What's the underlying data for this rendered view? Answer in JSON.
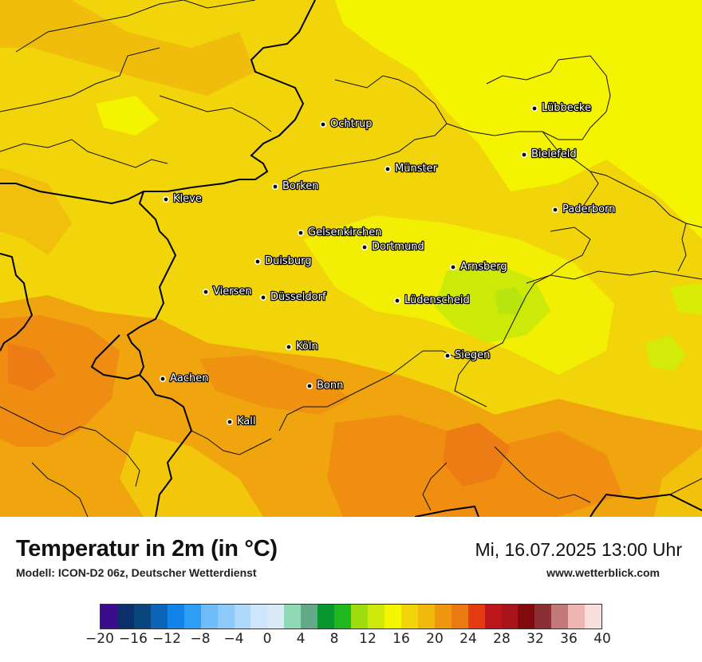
{
  "title": "Temperatur in 2m (in °C)",
  "subtitle": "Modell: ICON-D2 06z, Deutscher Wetterdienst",
  "datetime": "Mi, 16.07.2025 13:00 Uhr",
  "website": "www.wetterblick.com",
  "cities": [
    {
      "name": "Lübbecke"
    },
    {
      "name": "Ochtrup"
    },
    {
      "name": "Bielefeld"
    },
    {
      "name": "Münster"
    },
    {
      "name": "Borken"
    },
    {
      "name": "Kleve"
    },
    {
      "name": "Paderborn"
    },
    {
      "name": "Gelsenkirchen"
    },
    {
      "name": "Dortmund"
    },
    {
      "name": "Duisburg"
    },
    {
      "name": "Arnsberg"
    },
    {
      "name": "Viersen"
    },
    {
      "name": "Düsseldorf"
    },
    {
      "name": "Lüdenscheid"
    },
    {
      "name": "Köln"
    },
    {
      "name": "Siegen"
    },
    {
      "name": "Aachen"
    },
    {
      "name": "Bonn"
    },
    {
      "name": "Kall"
    }
  ],
  "legend": {
    "colors": [
      "#3b0d8c",
      "#0b2f6b",
      "#08467d",
      "#0b64b5",
      "#1283e8",
      "#2d9df5",
      "#6fbcf8",
      "#8ecaf9",
      "#afd9fb",
      "#cde6fb",
      "#d9e9f6",
      "#8fd9b6",
      "#63aa8b",
      "#08962e",
      "#1fb81f",
      "#9edc0f",
      "#cfe809",
      "#f4f700",
      "#f2d40a",
      "#f0b90b",
      "#ef9610",
      "#ec7a13",
      "#e43b13",
      "#bd161a",
      "#a81419",
      "#820a0c",
      "#8b2f34",
      "#c17a77",
      "#eeb5b1",
      "#f9dede"
    ],
    "ticks": [
      "−20",
      "−16",
      "−12",
      "−8",
      "−4",
      "0",
      "4",
      "8",
      "12",
      "16",
      "20",
      "24",
      "28",
      "32",
      "36",
      "40"
    ]
  }
}
